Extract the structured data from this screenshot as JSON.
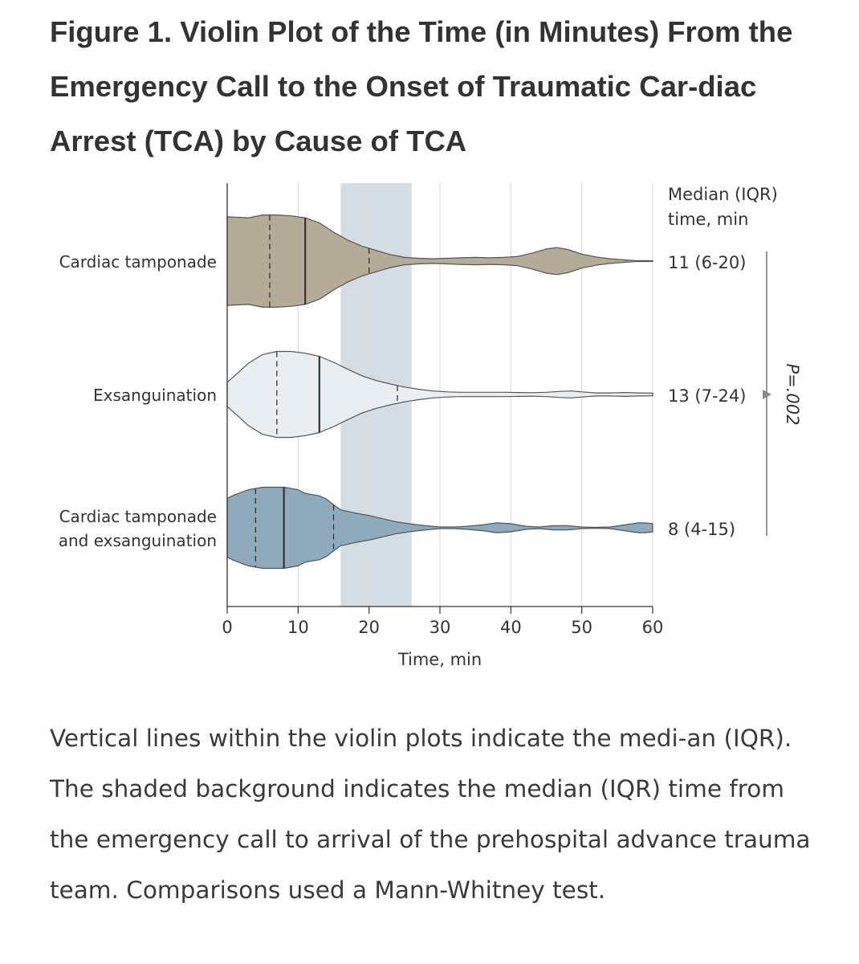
{
  "figure": {
    "title": "Figure 1. Violin Plot of the Time (in Minutes) From the Emergency Call to the Onset of Traumatic Car-diac Arrest (TCA) by Cause of TCA",
    "caption": "Vertical lines within the violin plots indicate the medi-an (IQR). The shaded background indicates the median (IQR) time from the emergency call to arrival of the prehospital advance trauma team. Comparisons used a Mann-Whitney test."
  },
  "colors": {
    "cardiac_tamponade": "#b4ab98",
    "exsanguination": "#e9eef2",
    "both": "#8eaabc",
    "shade": "#d4dde3",
    "outline": "#555555"
  },
  "chart_data": {
    "type": "violin",
    "xlabel": "Time, min",
    "xlim": [
      0,
      60
    ],
    "xticks": [
      "0",
      "10",
      "20",
      "30",
      "40",
      "50",
      "60"
    ],
    "shaded_band": {
      "from": 16,
      "to": 26
    },
    "right_header": [
      "Median (IQR)",
      "time, min"
    ],
    "p_value": "P=.002",
    "groups": [
      {
        "label_lines": [
          "Cardiac tamponade"
        ],
        "median": 11,
        "q1": 6,
        "q3": 20,
        "annotation": "11 (6-20)",
        "color": "#b4ab98",
        "density": [
          [
            0,
            0.95
          ],
          [
            3,
            0.93
          ],
          [
            5,
            0.99
          ],
          [
            7,
            0.99
          ],
          [
            9,
            0.97
          ],
          [
            11,
            0.93
          ],
          [
            13,
            0.82
          ],
          [
            15,
            0.62
          ],
          [
            17,
            0.45
          ],
          [
            19,
            0.32
          ],
          [
            21,
            0.23
          ],
          [
            23,
            0.14
          ],
          [
            25,
            0.08
          ],
          [
            27,
            0.06
          ],
          [
            29,
            0.05
          ],
          [
            31,
            0.06
          ],
          [
            33,
            0.07
          ],
          [
            35,
            0.08
          ],
          [
            37,
            0.07
          ],
          [
            39,
            0.08
          ],
          [
            41,
            0.1
          ],
          [
            43,
            0.17
          ],
          [
            45,
            0.26
          ],
          [
            46.5,
            0.29
          ],
          [
            48,
            0.25
          ],
          [
            50,
            0.15
          ],
          [
            52,
            0.09
          ],
          [
            54,
            0.05
          ],
          [
            56,
            0.025
          ],
          [
            57.5,
            0.012
          ],
          [
            58,
            0.008
          ],
          [
            60,
            0.008
          ]
        ]
      },
      {
        "label_lines": [
          "Exsanguination"
        ],
        "median": 13,
        "q1": 7,
        "q3": 24,
        "annotation": "13 (7-24)",
        "color": "#e9eef2",
        "density": [
          [
            0,
            0.28
          ],
          [
            1,
            0.42
          ],
          [
            3,
            0.72
          ],
          [
            5,
            0.92
          ],
          [
            7,
            0.99
          ],
          [
            9,
            0.99
          ],
          [
            11,
            0.95
          ],
          [
            13,
            0.88
          ],
          [
            15,
            0.74
          ],
          [
            17,
            0.58
          ],
          [
            19,
            0.43
          ],
          [
            21,
            0.32
          ],
          [
            23,
            0.24
          ],
          [
            25,
            0.17
          ],
          [
            27,
            0.12
          ],
          [
            29,
            0.08
          ],
          [
            31,
            0.06
          ],
          [
            33,
            0.05
          ],
          [
            35,
            0.05
          ],
          [
            37,
            0.05
          ],
          [
            39,
            0.05
          ],
          [
            41,
            0.045
          ],
          [
            43,
            0.04
          ],
          [
            45,
            0.05
          ],
          [
            47,
            0.07
          ],
          [
            48.5,
            0.08
          ],
          [
            50,
            0.06
          ],
          [
            52,
            0.035
          ],
          [
            54,
            0.035
          ],
          [
            56,
            0.045
          ],
          [
            58,
            0.035
          ],
          [
            60,
            0.03
          ]
        ]
      },
      {
        "label_lines": [
          "Cardiac tamponade",
          "and exsanguination"
        ],
        "median": 8,
        "q1": 4,
        "q3": 15,
        "annotation": "8 (4-15)",
        "color": "#8eaabc",
        "density": [
          [
            0,
            0.72
          ],
          [
            1,
            0.8
          ],
          [
            3,
            0.93
          ],
          [
            5,
            0.99
          ],
          [
            7,
            0.99
          ],
          [
            8,
            0.99
          ],
          [
            10,
            0.93
          ],
          [
            11,
            0.84
          ],
          [
            13,
            0.78
          ],
          [
            14,
            0.7
          ],
          [
            15,
            0.56
          ],
          [
            16,
            0.44
          ],
          [
            18,
            0.36
          ],
          [
            20,
            0.3
          ],
          [
            22,
            0.22
          ],
          [
            24,
            0.14
          ],
          [
            26,
            0.09
          ],
          [
            28,
            0.05
          ],
          [
            30,
            0.02
          ],
          [
            32,
            0.02
          ],
          [
            34,
            0.04
          ],
          [
            36,
            0.07
          ],
          [
            38,
            0.12
          ],
          [
            40,
            0.1
          ],
          [
            42,
            0.04
          ],
          [
            44,
            0.02
          ],
          [
            46,
            0.05
          ],
          [
            48,
            0.05
          ],
          [
            50,
            0.02
          ],
          [
            52,
            0.01
          ],
          [
            54,
            0.02
          ],
          [
            56,
            0.07
          ],
          [
            58,
            0.12
          ],
          [
            59,
            0.12
          ],
          [
            60,
            0.1
          ]
        ]
      }
    ]
  }
}
